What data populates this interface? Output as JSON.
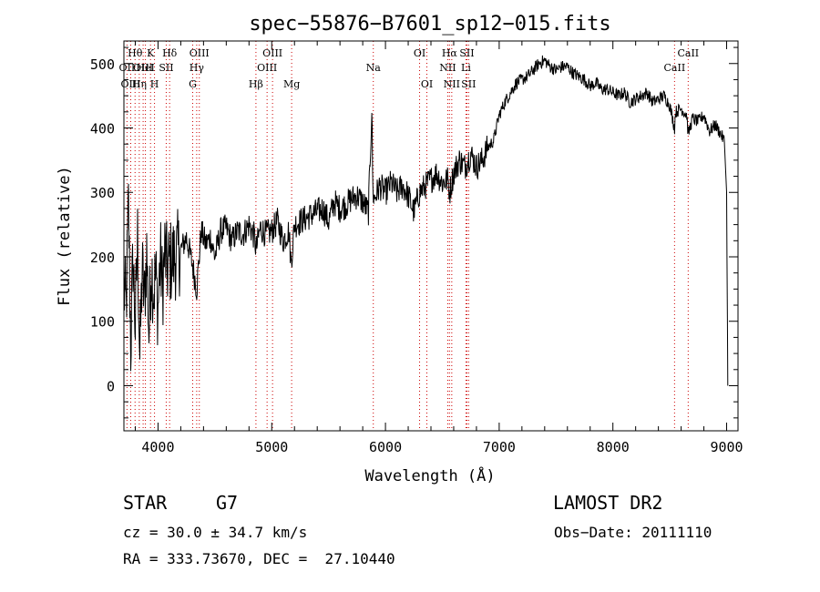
{
  "chart_data": {
    "type": "line",
    "title": "spec−55876−B7601_sp12−015.fits",
    "xlabel": "Wavelength (Å)",
    "ylabel": "Flux (relative)",
    "xlim": [
      3700,
      9100
    ],
    "ylim": [
      -70,
      535
    ],
    "xticks": [
      4000,
      5000,
      6000,
      7000,
      8000,
      9000
    ],
    "yticks": [
      0,
      100,
      200,
      300,
      400,
      500
    ],
    "grid": false,
    "series": [
      {
        "x": [
          3700,
          3720,
          3740,
          3760,
          3780,
          3800,
          3820,
          3840,
          3860,
          3880,
          3900,
          3920,
          3940,
          3960,
          3980,
          4000,
          4020,
          4040,
          4060,
          4080,
          4100,
          4150,
          4200,
          4250,
          4300,
          4340,
          4380,
          4420,
          4460,
          4500,
          4550,
          4600,
          4650,
          4700,
          4750,
          4800,
          4850,
          4861,
          4900,
          4950,
          5000,
          5050,
          5100,
          5150,
          5170,
          5200,
          5250,
          5300,
          5350,
          5400,
          5450,
          5500,
          5550,
          5600,
          5650,
          5700,
          5750,
          5800,
          5850,
          5880,
          5890,
          5900,
          5950,
          6000,
          6050,
          6100,
          6150,
          6200,
          6250,
          6300,
          6350,
          6400,
          6450,
          6500,
          6550,
          6563,
          6600,
          6650,
          6700,
          6750,
          6800,
          6850,
          6900,
          6950,
          7000,
          7050,
          7100,
          7150,
          7200,
          7250,
          7300,
          7350,
          7400,
          7450,
          7500,
          7550,
          7600,
          7650,
          7700,
          7750,
          7800,
          7850,
          7900,
          7950,
          8000,
          8050,
          8100,
          8150,
          8200,
          8250,
          8300,
          8350,
          8400,
          8450,
          8500,
          8542,
          8550,
          8600,
          8650,
          8662,
          8700,
          8750,
          8800,
          8850,
          8900,
          8950,
          8980,
          9000,
          9010
        ],
        "y": [
          150,
          120,
          280,
          60,
          200,
          90,
          230,
          40,
          180,
          130,
          210,
          80,
          190,
          150,
          170,
          120,
          200,
          150,
          210,
          180,
          190,
          200,
          210,
          230,
          190,
          150,
          240,
          220,
          230,
          200,
          240,
          245,
          225,
          240,
          235,
          250,
          230,
          210,
          245,
          235,
          240,
          255,
          225,
          240,
          190,
          250,
          255,
          260,
          265,
          270,
          275,
          255,
          285,
          275,
          280,
          290,
          295,
          285,
          270,
          430,
          300,
          290,
          310,
          300,
          315,
          300,
          310,
          295,
          270,
          300,
          310,
          320,
          330,
          315,
          320,
          300,
          330,
          350,
          340,
          360,
          340,
          350,
          370,
          380,
          420,
          440,
          455,
          470,
          475,
          480,
          490,
          500,
          505,
          495,
          490,
          495,
          495,
          485,
          480,
          475,
          465,
          470,
          460,
          460,
          455,
          450,
          455,
          440,
          445,
          450,
          455,
          440,
          445,
          450,
          435,
          400,
          425,
          430,
          420,
          390,
          415,
          410,
          420,
          395,
          405,
          390,
          380,
          300,
          0
        ]
      }
    ],
    "line_markers": [
      {
        "label": "Hθ",
        "x": 3798,
        "row": 1
      },
      {
        "label": "OII",
        "x": 3727,
        "row": 2
      },
      {
        "label": "OIII",
        "x": 3869,
        "row": 2
      },
      {
        "label": "OIII",
        "x": 3760,
        "row": 3
      },
      {
        "label": "Hη",
        "x": 3835,
        "row": 3
      },
      {
        "label": "K",
        "x": 3934,
        "row": 1
      },
      {
        "label": "HeI",
        "x": 3889,
        "row": 2
      },
      {
        "label": "SII",
        "x": 4072,
        "row": 2
      },
      {
        "label": "H",
        "x": 3969,
        "row": 3
      },
      {
        "label": "Hδ",
        "x": 4102,
        "row": 1
      },
      {
        "label": "OIII",
        "x": 4363,
        "row": 1
      },
      {
        "label": "Hγ",
        "x": 4340,
        "row": 2
      },
      {
        "label": "G",
        "x": 4305,
        "row": 3
      },
      {
        "label": "OIII",
        "x": 5007,
        "row": 1
      },
      {
        "label": "OIII",
        "x": 4959,
        "row": 2
      },
      {
        "label": "Hβ",
        "x": 4861,
        "row": 3
      },
      {
        "label": "Mg",
        "x": 5175,
        "row": 3
      },
      {
        "label": "Na",
        "x": 5893,
        "row": 2
      },
      {
        "label": "OI",
        "x": 6300,
        "row": 1
      },
      {
        "label": "OI",
        "x": 6364,
        "row": 3
      },
      {
        "label": "Hα",
        "x": 6563,
        "row": 1
      },
      {
        "label": "SII",
        "x": 6716,
        "row": 1
      },
      {
        "label": "NII",
        "x": 6548,
        "row": 2
      },
      {
        "label": "Li",
        "x": 6708,
        "row": 2
      },
      {
        "label": "NII",
        "x": 6583,
        "row": 3
      },
      {
        "label": "SII",
        "x": 6731,
        "row": 3
      },
      {
        "label": "CaII",
        "x": 8662,
        "row": 1
      },
      {
        "label": "CaII",
        "x": 8542,
        "row": 2
      }
    ]
  },
  "info": {
    "object_class": "STAR",
    "subclass": "G7",
    "survey": "LAMOST DR2",
    "cz": "cz = 30.0 ± 34.7 km/s",
    "obs_date": "Obs−Date: 20111110",
    "coords": "RA = 333.73670, DEC =  27.10440"
  }
}
